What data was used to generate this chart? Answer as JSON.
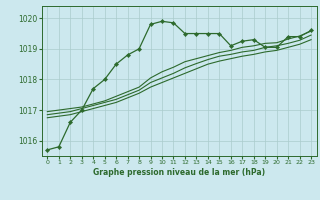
{
  "title": "Graphe pression niveau de la mer (hPa)",
  "bg_color": "#cce8ee",
  "grid_color": "#aacccc",
  "line_color": "#2d6a2d",
  "ylim": [
    1015.5,
    1020.4
  ],
  "yticks": [
    1016,
    1017,
    1018,
    1019,
    1020
  ],
  "xlim": [
    -0.5,
    23.5
  ],
  "xticks": [
    0,
    1,
    2,
    3,
    4,
    5,
    6,
    7,
    8,
    9,
    10,
    11,
    12,
    13,
    14,
    15,
    16,
    17,
    18,
    19,
    20,
    21,
    22,
    23
  ],
  "series1_x": [
    0,
    1,
    2,
    3,
    4,
    5,
    6,
    7,
    8,
    9,
    10,
    11,
    12,
    13,
    14,
    15,
    16,
    17,
    18,
    19,
    20,
    21,
    22,
    23
  ],
  "series1": [
    1015.7,
    1015.8,
    1016.6,
    1017.0,
    1017.7,
    1018.0,
    1018.5,
    1018.8,
    1019.0,
    1019.8,
    1019.9,
    1019.85,
    1019.5,
    1019.5,
    1019.5,
    1019.5,
    1019.1,
    1019.25,
    1019.3,
    1019.05,
    1019.05,
    1019.4,
    1019.4,
    1019.6
  ],
  "series2": [
    1016.75,
    1016.8,
    1016.85,
    1016.95,
    1017.05,
    1017.15,
    1017.25,
    1017.4,
    1017.55,
    1017.75,
    1017.9,
    1018.05,
    1018.2,
    1018.35,
    1018.5,
    1018.6,
    1018.68,
    1018.76,
    1018.82,
    1018.9,
    1018.95,
    1019.05,
    1019.15,
    1019.3
  ],
  "series3": [
    1016.85,
    1016.9,
    1016.95,
    1017.05,
    1017.15,
    1017.25,
    1017.35,
    1017.5,
    1017.65,
    1017.9,
    1018.05,
    1018.2,
    1018.38,
    1018.52,
    1018.65,
    1018.76,
    1018.82,
    1018.9,
    1018.95,
    1019.05,
    1019.1,
    1019.18,
    1019.28,
    1019.45
  ],
  "series4": [
    1016.95,
    1017.0,
    1017.05,
    1017.1,
    1017.2,
    1017.3,
    1017.45,
    1017.6,
    1017.75,
    1018.05,
    1018.25,
    1018.4,
    1018.58,
    1018.68,
    1018.78,
    1018.88,
    1018.95,
    1019.05,
    1019.1,
    1019.18,
    1019.2,
    1019.32,
    1019.42,
    1019.58
  ]
}
